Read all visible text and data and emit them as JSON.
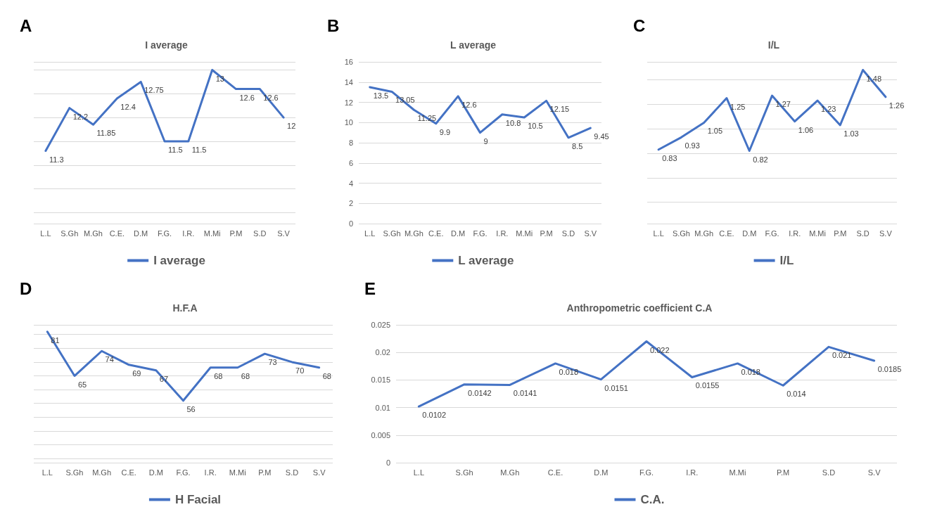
{
  "chart_data": [
    {
      "type": "line",
      "title": "I average",
      "annotations": [
        "A"
      ],
      "categories": [
        "L.L",
        "S.Gh",
        "M.Gh",
        "C.E.",
        "D.M",
        "F.G.",
        "I.R.",
        "M.Mi",
        "P.M",
        "S.D",
        "S.V"
      ],
      "series": [
        {
          "name": "I average",
          "color": "#4472c4",
          "values": [
            11.3,
            12.2,
            11.85,
            12.4,
            12.75,
            11.5,
            11.5,
            13,
            12.6,
            12.6,
            12
          ]
        }
      ],
      "data_labels": true,
      "grid": "y",
      "legend": "bottom",
      "tick_labels": "x",
      "marker": "none",
      "line_style": "solid"
    },
    {
      "type": "line",
      "title": "L average",
      "annotations": [
        "B"
      ],
      "categories": [
        "L.L",
        "S.Gh",
        "M.Gh",
        "C.E.",
        "D.M",
        "F.G.",
        "I.R.",
        "M.Mi",
        "P.M",
        "S.D",
        "S.V"
      ],
      "series": [
        {
          "name": "L average",
          "color": "#4472c4",
          "values": [
            13.5,
            13.05,
            11.25,
            9.9,
            12.6,
            9,
            10.8,
            10.5,
            12.15,
            8.5,
            9.45
          ]
        }
      ],
      "ylim": [
        0,
        16
      ],
      "yticks": [
        0,
        2,
        4,
        6,
        8,
        10,
        12,
        14,
        16
      ],
      "data_labels": true,
      "grid": "y",
      "legend": "bottom",
      "marker": "none",
      "line_style": "solid"
    },
    {
      "type": "line",
      "title": "I/L",
      "annotations": [
        "C"
      ],
      "categories": [
        "L.L",
        "S.Gh",
        "M.Gh",
        "C.E.",
        "D.M",
        "F.G.",
        "I.R.",
        "M.Mi",
        "P.M",
        "S.D",
        "S.V"
      ],
      "series": [
        {
          "name": "I/L",
          "color": "#4472c4",
          "values": [
            0.83,
            0.93,
            1.05,
            1.25,
            0.82,
            1.27,
            1.06,
            1.23,
            1.03,
            1.48,
            1.26
          ]
        }
      ],
      "data_labels": true,
      "grid": "y",
      "legend": "bottom",
      "tick_labels": "x",
      "marker": "none",
      "line_style": "solid"
    },
    {
      "type": "line",
      "title": "H.F.A",
      "annotations": [
        "D"
      ],
      "categories": [
        "L.L",
        "S.Gh",
        "M.Gh",
        "C.E.",
        "D.M",
        "F.G.",
        "I.R.",
        "M.Mi",
        "P.M",
        "S.D",
        "S.V"
      ],
      "series": [
        {
          "name": "H Facial",
          "color": "#4472c4",
          "values": [
            81,
            65,
            74,
            69,
            67,
            56,
            68,
            68,
            73,
            70,
            68
          ]
        }
      ],
      "data_labels": true,
      "grid": "y",
      "legend": "bottom",
      "tick_labels": "x",
      "marker": "none",
      "line_style": "solid"
    },
    {
      "type": "line",
      "title": "Anthropometric coefficient C.A",
      "annotations": [
        "E"
      ],
      "categories": [
        "L.L",
        "S.Gh",
        "M.Gh",
        "C.E.",
        "D.M",
        "F.G.",
        "I.R.",
        "M.Mi",
        "P.M",
        "S.D",
        "S.V"
      ],
      "series": [
        {
          "name": "C.A.",
          "color": "#4472c4",
          "values": [
            0.0102,
            0.0142,
            0.0141,
            0.018,
            0.0151,
            0.022,
            0.0155,
            0.018,
            0.014,
            0.021,
            0.0185
          ]
        }
      ],
      "ylim": [
        0,
        0.025
      ],
      "yticks": [
        0,
        0.005,
        0.01,
        0.015,
        0.02,
        0.025
      ],
      "data_labels": true,
      "grid": "y",
      "legend": "bottom",
      "marker": "none",
      "line_style": "solid"
    }
  ]
}
